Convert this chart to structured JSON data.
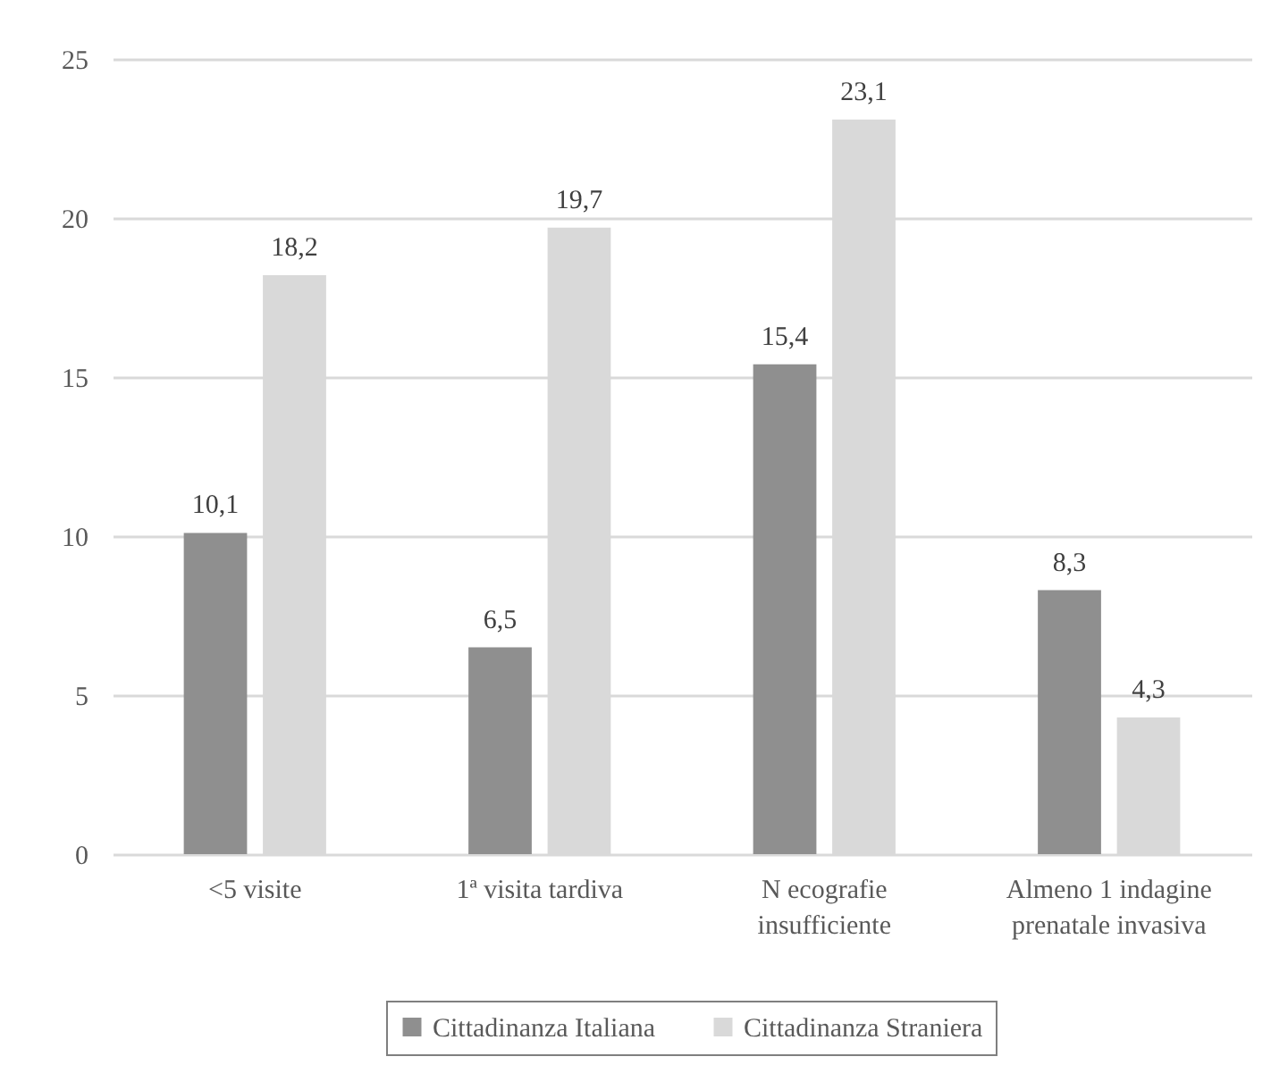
{
  "chart_data": {
    "type": "bar",
    "categories": [
      "<5 visite",
      "1ª visita tardiva",
      "N ecografie insufficiente",
      "Almeno 1 indagine prenatale invasiva"
    ],
    "series": [
      {
        "name": "Cittadinanza Italiana",
        "color": "#8f8f8f",
        "values": [
          10.1,
          6.5,
          15.4,
          8.3
        ],
        "value_labels": [
          "10,1",
          "6,5",
          "15,4",
          "8,3"
        ]
      },
      {
        "name": "Cittadinanza Straniera",
        "color": "#d9d9d9",
        "values": [
          18.2,
          19.7,
          23.1,
          4.3
        ],
        "value_labels": [
          "18,2",
          "19,7",
          "23,1",
          "4,3"
        ]
      }
    ],
    "ylim": [
      0,
      25
    ],
    "yticks": [
      0,
      5,
      10,
      15,
      20,
      25
    ],
    "grid": "y",
    "legend": "bottom"
  }
}
